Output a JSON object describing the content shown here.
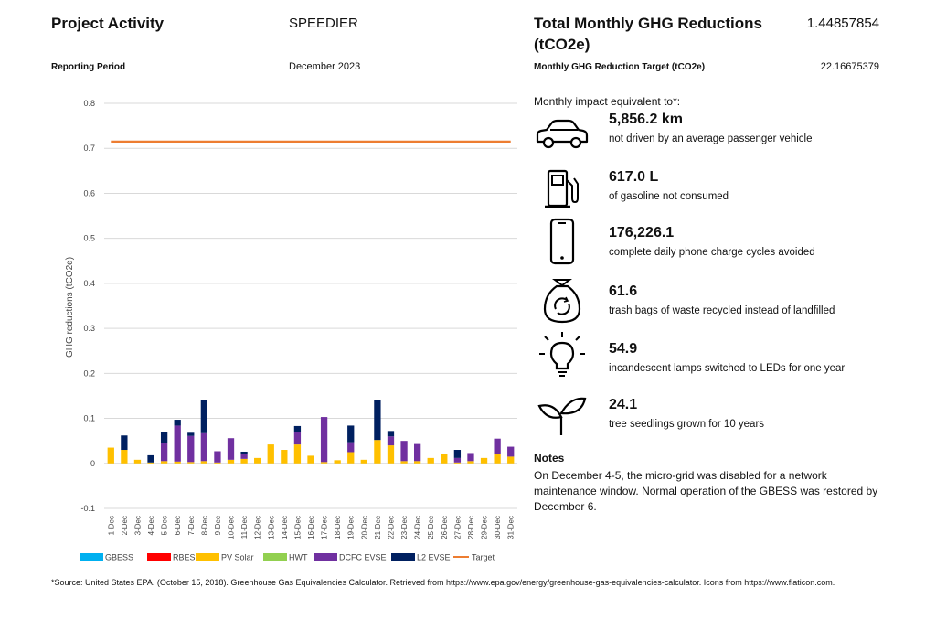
{
  "header": {
    "project_activity_label": "Project Activity",
    "project_name": "SPEEDIER",
    "reporting_period_label": "Reporting Period",
    "reporting_period": "December 2023",
    "total_label_line1": "Total Monthly GHG Reductions",
    "total_label_line2": "(tCO2e)",
    "total_value": "1.44857854",
    "target_label": "Monthly GHG Reduction Target (tCO2e)",
    "target_value": "22.16675379"
  },
  "equivalents": {
    "intro": "Monthly impact equivalent to*:",
    "items": [
      {
        "icon": "car-icon",
        "value": "5,856.2 km",
        "text": "not driven by an average passenger vehicle"
      },
      {
        "icon": "gas-pump-icon",
        "value": "617.0 L",
        "text": "of gasoline not consumed"
      },
      {
        "icon": "smartphone-icon",
        "value": "176,226.1",
        "text": "complete daily phone charge cycles avoided"
      },
      {
        "icon": "recycle-bag-icon",
        "value": "61.6",
        "text": "trash bags of waste recycled instead of landfilled"
      },
      {
        "icon": "lightbulb-icon",
        "value": "54.9",
        "text": "incandescent lamps switched to LEDs for one year"
      },
      {
        "icon": "seedling-icon",
        "value": "24.1",
        "text": "tree seedlings grown for 10 years"
      }
    ]
  },
  "notes": {
    "title": "Notes",
    "body": "On December 4-5, the micro-grid was disabled for a network maintenance window. Normal operation of the GBESS was restored by December 6."
  },
  "footnote": "*Source: United States EPA. (October 15, 2018). Greenhouse Gas Equivalencies Calculator. Retrieved from https://www.epa.gov/energy/greenhouse-gas-equivalencies-calculator. Icons from https://www.flaticon.com.",
  "chart_data": {
    "type": "bar",
    "stacked": true,
    "ylabel": "GHG reductions (tCO2e)",
    "ylim": [
      -0.1,
      0.8
    ],
    "yticks": [
      "0.8",
      "0.7",
      "0.6",
      "0.5",
      "0.4",
      "0.3",
      "0.2",
      "0.1",
      "0",
      "-0.1"
    ],
    "grid": true,
    "legend_position": "bottom",
    "categories": [
      "1-Dec",
      "2-Dec",
      "3-Dec",
      "4-Dec",
      "5-Dec",
      "6-Dec",
      "7-Dec",
      "8-Dec",
      "9-Dec",
      "10-Dec",
      "11-Dec",
      "12-Dec",
      "13-Dec",
      "14-Dec",
      "15-Dec",
      "16-Dec",
      "17-Dec",
      "18-Dec",
      "19-Dec",
      "20-Dec",
      "21-Dec",
      "22-Dec",
      "23-Dec",
      "24-Dec",
      "25-Dec",
      "26-Dec",
      "27-Dec",
      "28-Dec",
      "29-Dec",
      "30-Dec",
      "31-Dec"
    ],
    "series": [
      {
        "name": "GBESS",
        "color": "#00b0f0",
        "values": [
          0,
          0,
          0,
          0,
          0,
          0,
          0,
          0,
          0,
          0,
          0,
          0,
          0,
          0,
          0,
          0,
          0,
          0,
          0,
          0,
          0,
          0,
          0,
          0,
          0,
          0,
          0,
          0,
          0,
          0,
          0
        ]
      },
      {
        "name": "RBESS",
        "color": "#ff0000",
        "values": [
          0,
          0,
          0,
          0,
          0,
          0,
          0,
          0,
          0,
          0,
          0,
          0,
          0,
          0,
          0,
          0,
          0,
          0,
          0,
          0,
          0,
          0,
          0,
          0,
          0,
          0,
          0,
          0,
          0,
          0,
          0
        ]
      },
      {
        "name": "PV Solar",
        "color": "#ffc000",
        "values": [
          0.035,
          0.03,
          0.008,
          0.002,
          0.005,
          0.004,
          0.003,
          0.005,
          0.002,
          0.008,
          0.01,
          0.012,
          0.042,
          0.03,
          0.042,
          0.017,
          0.003,
          0.007,
          0.025,
          0.008,
          0.052,
          0.04,
          0.005,
          0.005,
          0.012,
          0.02,
          0.002,
          0.005,
          0.012,
          0.02,
          0.015
        ]
      },
      {
        "name": "HWT",
        "color": "#92d050",
        "values": [
          0,
          0,
          0,
          0,
          0,
          0,
          0,
          0,
          0,
          0,
          0,
          0,
          0,
          0,
          0,
          0,
          0,
          0,
          0,
          0,
          0,
          0,
          0,
          0,
          0,
          0,
          0,
          0,
          0,
          0,
          0
        ]
      },
      {
        "name": "DCFC EVSE",
        "color": "#7030a0",
        "values": [
          0,
          0,
          0,
          0,
          0.04,
          0.08,
          0.058,
          0.062,
          0.025,
          0.048,
          0.01,
          0,
          0,
          0,
          0.028,
          0,
          0.1,
          0,
          0.022,
          0,
          0,
          0.02,
          0.045,
          0.038,
          0,
          0,
          0.01,
          0.018,
          0,
          0.035,
          0.022
        ]
      },
      {
        "name": "L2 EVSE",
        "color": "#002060",
        "values": [
          0,
          0.032,
          0,
          0.016,
          0.025,
          0.013,
          0.007,
          0.073,
          0,
          0,
          0.006,
          0,
          0,
          0,
          0.013,
          0,
          0,
          0,
          0.037,
          0,
          0.088,
          0.012,
          0,
          0,
          0,
          0,
          0.018,
          0,
          0,
          0,
          0
        ]
      }
    ],
    "target": {
      "name": "Target",
      "color": "#ed7d31",
      "value": 0.715
    }
  }
}
